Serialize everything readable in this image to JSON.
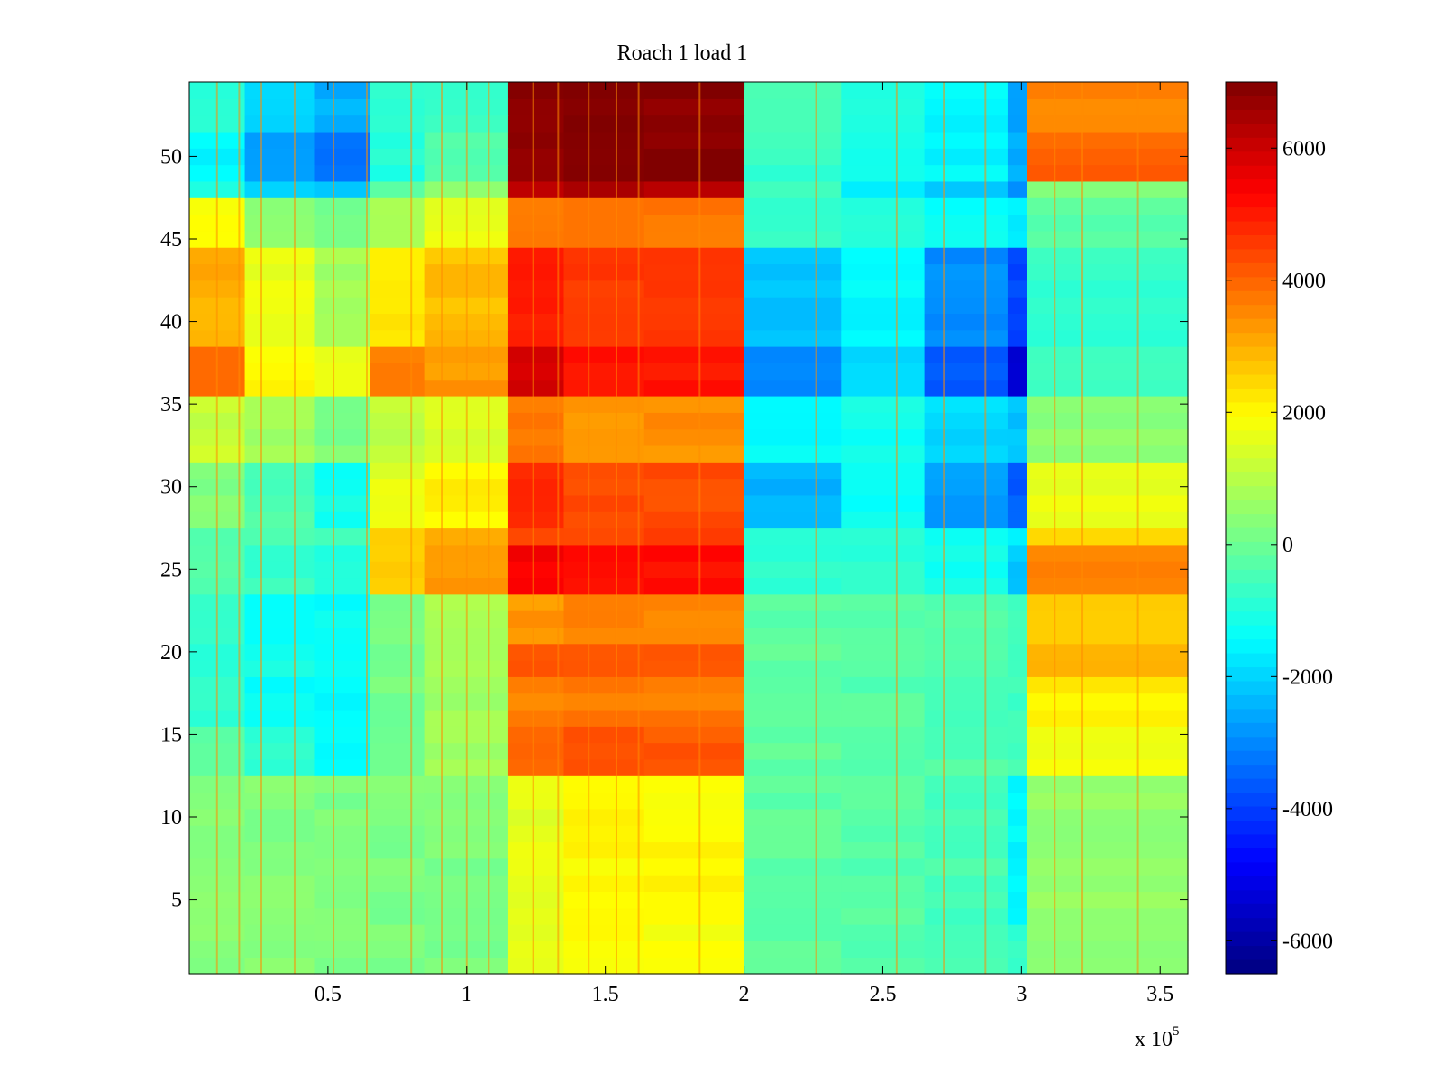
{
  "chart_data": {
    "type": "heatmap",
    "title": "Roach 1 load 1",
    "xlabel": "",
    "ylabel": "",
    "x_multiplier_label": "x 10",
    "x_multiplier_exponent": "5",
    "xlim": [
      0,
      3.6
    ],
    "ylim": [
      0.5,
      54.5
    ],
    "x_ticks": [
      0.5,
      1,
      1.5,
      2,
      2.5,
      3,
      3.5
    ],
    "x_tick_labels": [
      "0.5",
      "1",
      "1.5",
      "2",
      "2.5",
      "3",
      "3.5"
    ],
    "y_ticks": [
      5,
      10,
      15,
      20,
      25,
      30,
      35,
      40,
      45,
      50
    ],
    "y_tick_labels": [
      "5",
      "10",
      "15",
      "20",
      "25",
      "30",
      "35",
      "40",
      "45",
      "50"
    ],
    "colorbar": {
      "colormap": "jet",
      "clim": [
        -6500,
        7000
      ],
      "ticks": [
        6000,
        4000,
        2000,
        0,
        -2000,
        -4000,
        -6000
      ],
      "tick_labels": [
        "6000",
        "4000",
        "2000",
        "0",
        "-2000",
        "-4000",
        "-6000"
      ]
    },
    "rows": 54,
    "x_segment_edges": [
      0,
      0.2,
      0.45,
      0.65,
      0.85,
      1.15,
      1.35,
      1.64,
      2.0,
      2.35,
      2.65,
      2.95,
      3.02,
      3.6
    ],
    "row_bands": [
      {
        "rows": [
          1,
          3
        ],
        "values": [
          400,
          300,
          200,
          200,
          200,
          1600,
          1900,
          1800,
          -200,
          -300,
          -500,
          -800,
          300
        ]
      },
      {
        "rows": [
          4,
          12
        ],
        "values": [
          400,
          300,
          200,
          200,
          200,
          1600,
          2000,
          2000,
          -200,
          -300,
          -500,
          -1500,
          500
        ]
      },
      {
        "rows": [
          13,
          15
        ],
        "values": [
          -300,
          -900,
          -1400,
          0,
          700,
          4000,
          4200,
          4200,
          -200,
          -300,
          -400,
          -600,
          1800
        ]
      },
      {
        "rows": [
          16,
          18
        ],
        "values": [
          -800,
          -1400,
          -1400,
          100,
          700,
          3600,
          3700,
          3700,
          -200,
          -300,
          -400,
          -600,
          2100
        ]
      },
      {
        "rows": [
          19,
          20
        ],
        "values": [
          -800,
          -1200,
          -1300,
          200,
          900,
          4200,
          4300,
          4300,
          -200,
          -300,
          -400,
          -600,
          2800
        ]
      },
      {
        "rows": [
          21,
          23
        ],
        "values": [
          -900,
          -1500,
          -1400,
          200,
          800,
          3300,
          3500,
          3500,
          -200,
          -300,
          -400,
          -600,
          2500
        ]
      },
      {
        "rows": [
          24,
          26
        ],
        "values": [
          -400,
          -700,
          -900,
          2500,
          3400,
          5400,
          5200,
          5200,
          -800,
          -900,
          -1200,
          -2200,
          3500
        ]
      },
      {
        "rows": [
          27,
          27
        ],
        "values": [
          -400,
          -500,
          -600,
          2500,
          3000,
          4500,
          4500,
          4500,
          -800,
          -900,
          -1200,
          -1500,
          2400
        ]
      },
      {
        "rows": [
          28,
          31
        ],
        "values": [
          300,
          -400,
          -1200,
          1600,
          2100,
          4700,
          4300,
          4300,
          -2400,
          -1300,
          -2700,
          -3600,
          1600
        ]
      },
      {
        "rows": [
          32,
          35
        ],
        "values": [
          1200,
          700,
          200,
          1100,
          1400,
          3700,
          3400,
          3400,
          -1400,
          -1200,
          -1900,
          -2200,
          400
        ]
      },
      {
        "rows": [
          36,
          38
        ],
        "values": [
          3800,
          2000,
          1600,
          3600,
          3300,
          5900,
          5100,
          5100,
          -3000,
          -2000,
          -3600,
          -5500,
          -700
        ]
      },
      {
        "rows": [
          39,
          44
        ],
        "values": [
          3000,
          1700,
          700,
          2200,
          2800,
          4900,
          4600,
          4600,
          -2200,
          -1500,
          -2900,
          -3900,
          -800
        ]
      },
      {
        "rows": [
          45,
          47
        ],
        "values": [
          1800,
          400,
          100,
          900,
          1700,
          3700,
          3800,
          3800,
          -800,
          -1000,
          -1400,
          -1600,
          -300
        ]
      },
      {
        "rows": [
          48,
          48
        ],
        "values": [
          -1200,
          -2000,
          -2300,
          -400,
          400,
          6200,
          6400,
          6400,
          -500,
          -1500,
          -2300,
          -2800,
          400
        ]
      },
      {
        "rows": [
          49,
          51
        ],
        "values": [
          -1500,
          -2600,
          -3200,
          -1000,
          -400,
          6800,
          6900,
          6900,
          -700,
          -1300,
          -1500,
          -2500,
          4000
        ]
      },
      {
        "rows": [
          52,
          54
        ],
        "values": [
          -1000,
          -1900,
          -2500,
          -900,
          -600,
          6800,
          6900,
          6900,
          -500,
          -1100,
          -1500,
          -2600,
          3600
        ]
      }
    ],
    "vertical_streaks_x": [
      0.1,
      0.18,
      0.26,
      0.38,
      0.52,
      0.64,
      0.8,
      0.91,
      1.0,
      1.08,
      1.24,
      1.33,
      1.44,
      1.54,
      1.62,
      1.84,
      2.26,
      2.55,
      2.72,
      2.87,
      3.12,
      3.22,
      3.42
    ]
  }
}
